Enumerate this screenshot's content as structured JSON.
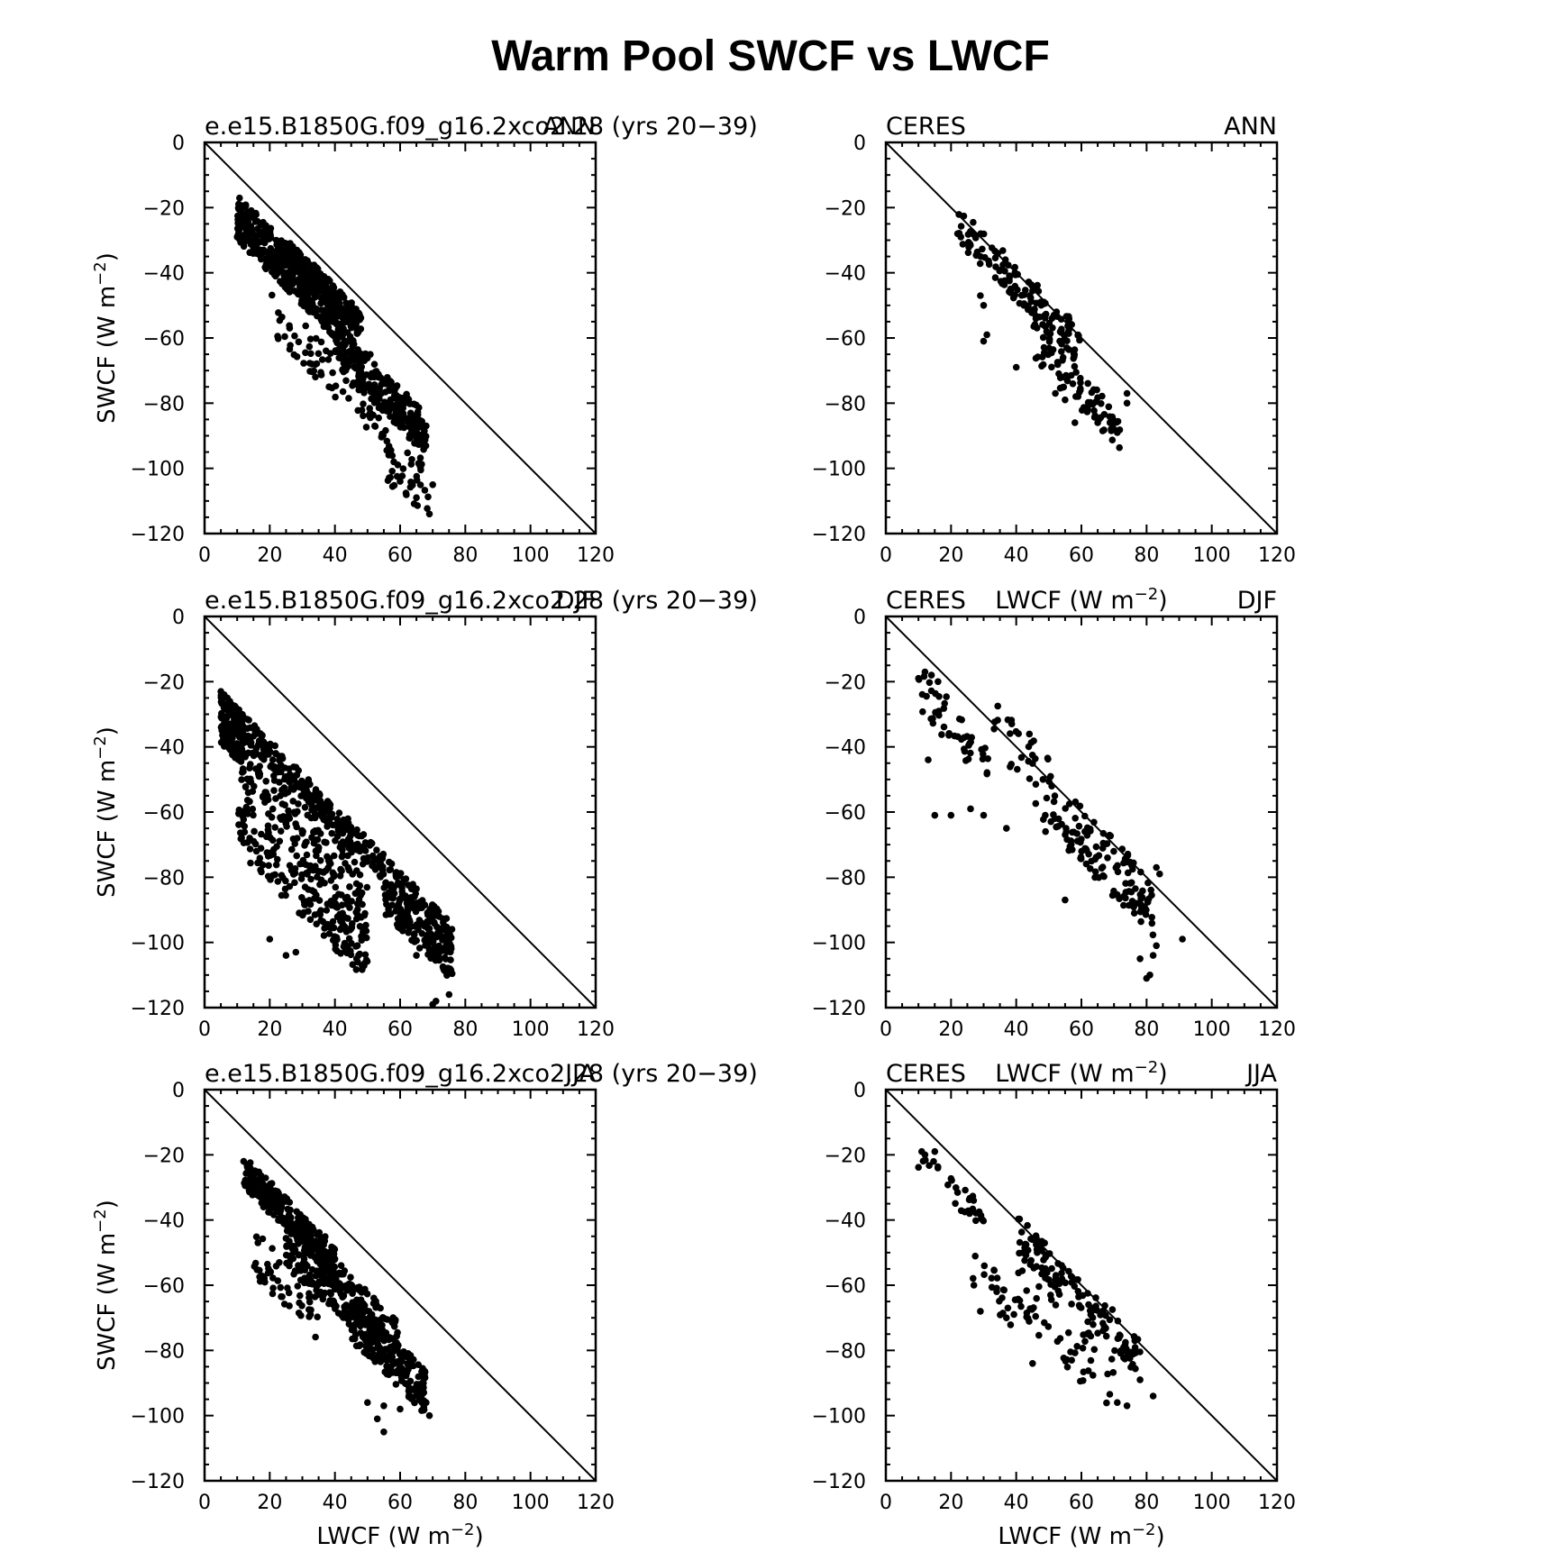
{
  "figure": {
    "title": "Warm Pool SWCF vs LWCF",
    "ylabel_html": "SWCF (W m<tspan baseline-shift=\"super\" font-size=\"18\">−2</tspan>)",
    "xlabel_html": "LWCF (W m<tspan baseline-shift=\"super\" font-size=\"18\">−2</tspan>)",
    "ylabel": "SWCF (W m−2)",
    "xlabel": "LWCF (W m−2)",
    "point_color": "#000000"
  },
  "chart_data": [
    {
      "type": "scatter",
      "left_label": "e.e15.B1850G.f09_g16.2xco2.28 (yrs 20−39)",
      "right_label": "ANN",
      "show_ylabel": true,
      "show_xlabel": false,
      "xlim": [
        0,
        120
      ],
      "ylim": [
        -120,
        0
      ],
      "xticks": [
        0,
        20,
        40,
        60,
        80,
        100,
        120
      ],
      "yticks": [
        0,
        -20,
        -40,
        -60,
        -80,
        -100,
        -120
      ],
      "reference_line": [
        [
          0,
          0
        ],
        [
          120,
          -120
        ]
      ],
      "grid": false,
      "clusters": [
        {
          "n": 420,
          "x": [
            10,
            42
          ],
          "dy": [
            -6,
            -20
          ]
        },
        {
          "n": 200,
          "x": [
            25,
            48
          ],
          "dy": [
            -4,
            -12
          ]
        },
        {
          "n": 250,
          "x": [
            40,
            68
          ],
          "dy": [
            -14,
            -28
          ]
        },
        {
          "n": 70,
          "x": [
            20,
            55
          ],
          "dy": [
            -25,
            -38
          ]
        },
        {
          "n": 40,
          "x": [
            55,
            70
          ],
          "dy": [
            -30,
            -48
          ]
        }
      ],
      "points": [
        [
          10,
          -29
        ],
        [
          11,
          -30
        ],
        [
          12,
          -31
        ],
        [
          25,
          -34
        ],
        [
          27,
          -36
        ],
        [
          69,
          -114
        ],
        [
          70,
          -105
        ],
        [
          66,
          -99
        ],
        [
          60,
          -104
        ],
        [
          68,
          -87
        ],
        [
          65,
          -109
        ]
      ]
    },
    {
      "type": "scatter",
      "left_label": "CERES",
      "center_label": "",
      "right_label": "ANN",
      "show_ylabel": false,
      "show_xlabel": false,
      "xlim": [
        0,
        120
      ],
      "ylim": [
        -120,
        0
      ],
      "xticks": [
        0,
        20,
        40,
        60,
        80,
        100,
        120
      ],
      "yticks": [
        0,
        -20,
        -40,
        -60,
        -80,
        -100,
        -120
      ],
      "reference_line": [
        [
          0,
          0
        ],
        [
          120,
          -120
        ]
      ],
      "grid": false,
      "clusters": [
        {
          "n": 140,
          "x": [
            22,
            60
          ],
          "dy": [
            3,
            -9
          ]
        },
        {
          "n": 80,
          "x": [
            45,
            72
          ],
          "dy": [
            -10,
            -22
          ]
        }
      ],
      "points": [
        [
          22,
          -28
        ],
        [
          23,
          -29
        ],
        [
          30,
          -61
        ],
        [
          31,
          -59
        ],
        [
          29,
          -47
        ],
        [
          30,
          -50
        ],
        [
          40,
          -69
        ],
        [
          58,
          -86
        ],
        [
          62,
          -82
        ],
        [
          65,
          -86
        ],
        [
          70,
          -88
        ],
        [
          71,
          -89
        ],
        [
          74,
          -80
        ],
        [
          74,
          -77
        ],
        [
          52,
          -77
        ],
        [
          55,
          -79
        ]
      ]
    },
    {
      "type": "scatter",
      "left_label": "e.e15.B1850G.f09_g16.2xco2.28 (yrs 20−39)",
      "right_label": "DJF",
      "show_ylabel": true,
      "show_xlabel": false,
      "xlim": [
        0,
        120
      ],
      "ylim": [
        -120,
        0
      ],
      "xticks": [
        0,
        20,
        40,
        60,
        80,
        100,
        120
      ],
      "yticks": [
        0,
        -20,
        -40,
        -60,
        -80,
        -100,
        -120
      ],
      "reference_line": [
        [
          0,
          0
        ],
        [
          120,
          -120
        ]
      ],
      "grid": false,
      "clusters": [
        {
          "n": 150,
          "x": [
            5,
            12
          ],
          "dy": [
            -18,
            -34
          ]
        },
        {
          "n": 250,
          "x": [
            10,
            55
          ],
          "dy": [
            -18,
            -26
          ]
        },
        {
          "n": 380,
          "x": [
            10,
            50
          ],
          "dy": [
            -26,
            -62
          ]
        },
        {
          "n": 230,
          "x": [
            55,
            76
          ],
          "dy": [
            -18,
            -36
          ]
        }
      ],
      "points": [
        [
          5,
          -23
        ],
        [
          6,
          -24
        ],
        [
          7,
          -25
        ],
        [
          70,
          -119
        ],
        [
          71,
          -118
        ],
        [
          75,
          -116
        ],
        [
          74,
          -109
        ],
        [
          20,
          -99
        ],
        [
          25,
          -104
        ],
        [
          28,
          -103
        ],
        [
          60,
          -92
        ],
        [
          65,
          -104
        ]
      ]
    },
    {
      "type": "scatter",
      "left_label": "CERES",
      "center_label_html": "LWCF (W m<tspan baseline-shift=\"super\" font-size=\"18\">−2</tspan>)",
      "center_label": "LWCF (W m−2)",
      "right_label": "DJF",
      "show_ylabel": false,
      "show_xlabel": false,
      "xlim": [
        0,
        120
      ],
      "ylim": [
        -120,
        0
      ],
      "xticks": [
        0,
        20,
        40,
        60,
        80,
        100,
        120
      ],
      "yticks": [
        0,
        -20,
        -40,
        -60,
        -80,
        -100,
        -120
      ],
      "reference_line": [
        [
          0,
          0
        ],
        [
          120,
          -120
        ]
      ],
      "grid": false,
      "clusters": [
        {
          "n": 45,
          "x": [
            10,
            32
          ],
          "dy": [
            -6,
            -20
          ]
        },
        {
          "n": 25,
          "x": [
            32,
            52
          ],
          "dy": [
            8,
            -2
          ]
        },
        {
          "n": 110,
          "x": [
            55,
            82
          ],
          "dy": [
            2,
            -16
          ]
        },
        {
          "n": 25,
          "x": [
            38,
            62
          ],
          "dy": [
            -2,
            -14
          ]
        }
      ],
      "points": [
        [
          10,
          -19
        ],
        [
          12,
          -17
        ],
        [
          14,
          -18
        ],
        [
          16,
          -20
        ],
        [
          13,
          -44
        ],
        [
          15,
          -61
        ],
        [
          20,
          -61
        ],
        [
          26,
          -59
        ],
        [
          30,
          -61
        ],
        [
          37,
          -65
        ],
        [
          49,
          -66
        ],
        [
          55,
          -87
        ],
        [
          81,
          -110
        ],
        [
          80,
          -111
        ],
        [
          78,
          -105
        ],
        [
          91,
          -99
        ],
        [
          84,
          -79
        ],
        [
          83,
          -77
        ],
        [
          82,
          -104
        ],
        [
          83,
          -101
        ]
      ]
    },
    {
      "type": "scatter",
      "left_label": "e.e15.B1850G.f09_g16.2xco2.28 (yrs 20−39)",
      "right_label": "JJA",
      "show_ylabel": true,
      "show_xlabel": true,
      "xlim": [
        0,
        120
      ],
      "ylim": [
        -120,
        0
      ],
      "xticks": [
        0,
        20,
        40,
        60,
        80,
        100,
        120
      ],
      "yticks": [
        0,
        -20,
        -40,
        -60,
        -80,
        -100,
        -120
      ],
      "reference_line": [
        [
          0,
          0
        ],
        [
          120,
          -120
        ]
      ],
      "grid": false,
      "clusters": [
        {
          "n": 250,
          "x": [
            12,
            40
          ],
          "dy": [
            -8,
            -18
          ]
        },
        {
          "n": 280,
          "x": [
            25,
            60
          ],
          "dy": [
            -12,
            -28
          ]
        },
        {
          "n": 180,
          "x": [
            45,
            68
          ],
          "dy": [
            -18,
            -32
          ]
        },
        {
          "n": 60,
          "x": [
            15,
            35
          ],
          "dy": [
            -25,
            -42
          ]
        }
      ],
      "points": [
        [
          12,
          -22
        ],
        [
          13,
          -23
        ],
        [
          14,
          -24
        ],
        [
          55,
          -105
        ],
        [
          53,
          -101
        ],
        [
          60,
          -98
        ],
        [
          68,
          -96
        ],
        [
          69,
          -100
        ],
        [
          50,
          -96
        ],
        [
          55,
          -97
        ]
      ]
    },
    {
      "type": "scatter",
      "left_label": "CERES",
      "center_label_html": "LWCF (W m<tspan baseline-shift=\"super\" font-size=\"18\">−2</tspan>)",
      "center_label": "LWCF (W m−2)",
      "right_label": "JJA",
      "show_ylabel": false,
      "show_xlabel": true,
      "xlim": [
        0,
        120
      ],
      "ylim": [
        -120,
        0
      ],
      "xticks": [
        0,
        20,
        40,
        60,
        80,
        100,
        120
      ],
      "yticks": [
        0,
        -20,
        -40,
        -60,
        -80,
        -100,
        -120
      ],
      "reference_line": [
        [
          0,
          0
        ],
        [
          120,
          -120
        ]
      ],
      "grid": false,
      "clusters": [
        {
          "n": 30,
          "x": [
            10,
            30
          ],
          "dy": [
            -6,
            -14
          ]
        },
        {
          "n": 130,
          "x": [
            40,
            78
          ],
          "dy": [
            2,
            -10
          ]
        },
        {
          "n": 50,
          "x": [
            38,
            70
          ],
          "dy": [
            -12,
            -30
          ]
        },
        {
          "n": 20,
          "x": [
            25,
            40
          ],
          "dy": [
            -22,
            -34
          ]
        }
      ],
      "points": [
        [
          11,
          -19
        ],
        [
          12,
          -20
        ],
        [
          15,
          -19
        ],
        [
          27,
          -60
        ],
        [
          29,
          -68
        ],
        [
          34,
          -62
        ],
        [
          37,
          -70
        ],
        [
          45,
          -84
        ],
        [
          57,
          -83
        ],
        [
          71,
          -96
        ],
        [
          74,
          -97
        ],
        [
          82,
          -94
        ],
        [
          78,
          -89
        ]
      ]
    }
  ]
}
